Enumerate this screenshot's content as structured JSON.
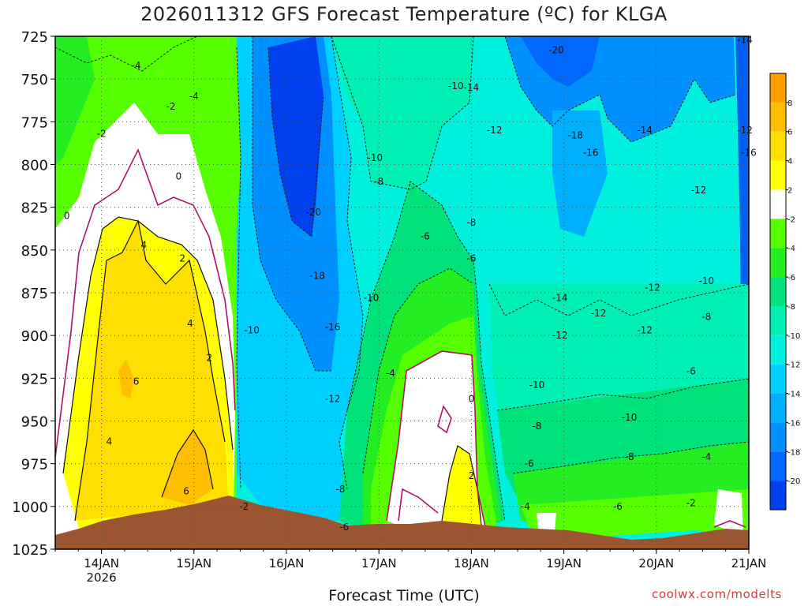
{
  "chart_data": {
    "type": "heatmap",
    "title": "2026011312 GFS Forecast Temperature (ºC) for KLGA",
    "xlabel": "Forecast Time (UTC)",
    "credit": "coolwx.com/modelts",
    "x_ticks": [
      {
        "value": "2026-01-14T00",
        "label": "14JAN",
        "sublabel": "2026"
      },
      {
        "value": "2026-01-15T00",
        "label": "15JAN"
      },
      {
        "value": "2026-01-16T00",
        "label": "16JAN"
      },
      {
        "value": "2026-01-17T00",
        "label": "17JAN"
      },
      {
        "value": "2026-01-18T00",
        "label": "18JAN"
      },
      {
        "value": "2026-01-19T00",
        "label": "19JAN"
      },
      {
        "value": "2026-01-20T00",
        "label": "20JAN"
      },
      {
        "value": "2026-01-21T00",
        "label": "21JAN"
      }
    ],
    "xlim": [
      "2026-01-13T12",
      "2026-01-21T00"
    ],
    "ylabel": "",
    "y_ticks": [
      725,
      750,
      775,
      800,
      825,
      850,
      875,
      900,
      925,
      950,
      975,
      1000,
      1025
    ],
    "ylim": [
      725,
      1025
    ],
    "y_inverted": true,
    "grid": true,
    "colorbar": {
      "labels": [
        "8",
        "6",
        "4",
        "2",
        "-2",
        "-4",
        "-6",
        "-8",
        "-10",
        "-12",
        "-14",
        "-16",
        "-18",
        "-20"
      ],
      "colors": [
        "#ff9e00",
        "#ffbf00",
        "#ffdf00",
        "#ffff00",
        "#ffffff",
        "#55ff00",
        "#22ee22",
        "#00e27a",
        "#00f0b4",
        "#00f0dd",
        "#00d0ff",
        "#00b0ff",
        "#0090ff",
        "#0068ff",
        "#0040ee"
      ]
    },
    "contour_labels": [
      {
        "text": "-4",
        "x": "2026-01-14T09",
        "y": 742
      },
      {
        "text": "-4",
        "x": "2026-01-15T00",
        "y": 760
      },
      {
        "text": "-2",
        "x": "2026-01-14T18",
        "y": 766
      },
      {
        "text": "-2",
        "x": "2026-01-14T00",
        "y": 782
      },
      {
        "text": "0",
        "x": "2026-01-14T20",
        "y": 807
      },
      {
        "text": "0",
        "x": "2026-01-13T15",
        "y": 830
      },
      {
        "text": "4",
        "x": "2026-01-14T11",
        "y": 847
      },
      {
        "text": "2",
        "x": "2026-01-14T21",
        "y": 855
      },
      {
        "text": "4",
        "x": "2026-01-14T23",
        "y": 893
      },
      {
        "text": "2",
        "x": "2026-01-15T04",
        "y": 913
      },
      {
        "text": "6",
        "x": "2026-01-14T09",
        "y": 927
      },
      {
        "text": "4",
        "x": "2026-01-14T02",
        "y": 962
      },
      {
        "text": "6",
        "x": "2026-01-14T22",
        "y": 991
      },
      {
        "text": "-2",
        "x": "2026-01-15T13",
        "y": 1000
      },
      {
        "text": "-10",
        "x": "2026-01-15T15",
        "y": 897
      },
      {
        "text": "-20",
        "x": "2026-01-16T07",
        "y": 828
      },
      {
        "text": "-18",
        "x": "2026-01-16T08",
        "y": 865
      },
      {
        "text": "-16",
        "x": "2026-01-16T12",
        "y": 895
      },
      {
        "text": "-12",
        "x": "2026-01-16T12",
        "y": 937
      },
      {
        "text": "-10",
        "x": "2026-01-16T22",
        "y": 878
      },
      {
        "text": "-8",
        "x": "2026-01-16T14",
        "y": 990
      },
      {
        "text": "-6",
        "x": "2026-01-16T15",
        "y": 1012
      },
      {
        "text": "-10",
        "x": "2026-01-16T23",
        "y": 796
      },
      {
        "text": "-8",
        "x": "2026-01-17T00",
        "y": 810
      },
      {
        "text": "-6",
        "x": "2026-01-17T12",
        "y": 842
      },
      {
        "text": "-4",
        "x": "2026-01-17T03",
        "y": 922
      },
      {
        "text": "0",
        "x": "2026-01-18T00",
        "y": 937
      },
      {
        "text": "2",
        "x": "2026-01-18T00",
        "y": 982
      },
      {
        "text": "-8",
        "x": "2026-01-18T00",
        "y": 834
      },
      {
        "text": "-6",
        "x": "2026-01-18T00",
        "y": 855
      },
      {
        "text": "-10",
        "x": "2026-01-17T20",
        "y": 754
      },
      {
        "text": "-14",
        "x": "2026-01-18T00",
        "y": 755
      },
      {
        "text": "-12",
        "x": "2026-01-18T06",
        "y": 780
      },
      {
        "text": "-20",
        "x": "2026-01-18T22",
        "y": 733
      },
      {
        "text": "-18",
        "x": "2026-01-19T03",
        "y": 783
      },
      {
        "text": "-16",
        "x": "2026-01-19T07",
        "y": 793
      },
      {
        "text": "-14",
        "x": "2026-01-19T21",
        "y": 780
      },
      {
        "text": "-12",
        "x": "2026-01-20T23",
        "y": 780
      },
      {
        "text": "-16",
        "x": "2026-01-21T00",
        "y": 793
      },
      {
        "text": "-12",
        "x": "2026-01-20T11",
        "y": 815
      },
      {
        "text": "-14",
        "x": "2026-01-20T23",
        "y": 727
      },
      {
        "text": "-12",
        "x": "2026-01-19T23",
        "y": 872
      },
      {
        "text": "-10",
        "x": "2026-01-20T13",
        "y": 868
      },
      {
        "text": "-14",
        "x": "2026-01-18T23",
        "y": 878
      },
      {
        "text": "-12",
        "x": "2026-01-19T09",
        "y": 887
      },
      {
        "text": "-12",
        "x": "2026-01-19T21",
        "y": 897
      },
      {
        "text": "-12",
        "x": "2026-01-18T23",
        "y": 900
      },
      {
        "text": "-8",
        "x": "2026-01-20T13",
        "y": 889
      },
      {
        "text": "-10",
        "x": "2026-01-18T17",
        "y": 929
      },
      {
        "text": "-6",
        "x": "2026-01-20T09",
        "y": 921
      },
      {
        "text": "-10",
        "x": "2026-01-19T17",
        "y": 948
      },
      {
        "text": "-8",
        "x": "2026-01-18T17",
        "y": 953
      },
      {
        "text": "-8",
        "x": "2026-01-19T17",
        "y": 971
      },
      {
        "text": "-6",
        "x": "2026-01-18T15",
        "y": 975
      },
      {
        "text": "-4",
        "x": "2026-01-20T13",
        "y": 971
      },
      {
        "text": "-6",
        "x": "2026-01-19T14",
        "y": 1000
      },
      {
        "text": "-4",
        "x": "2026-01-18T14",
        "y": 1000
      },
      {
        "text": "-2",
        "x": "2026-01-20T09",
        "y": 998
      }
    ]
  }
}
